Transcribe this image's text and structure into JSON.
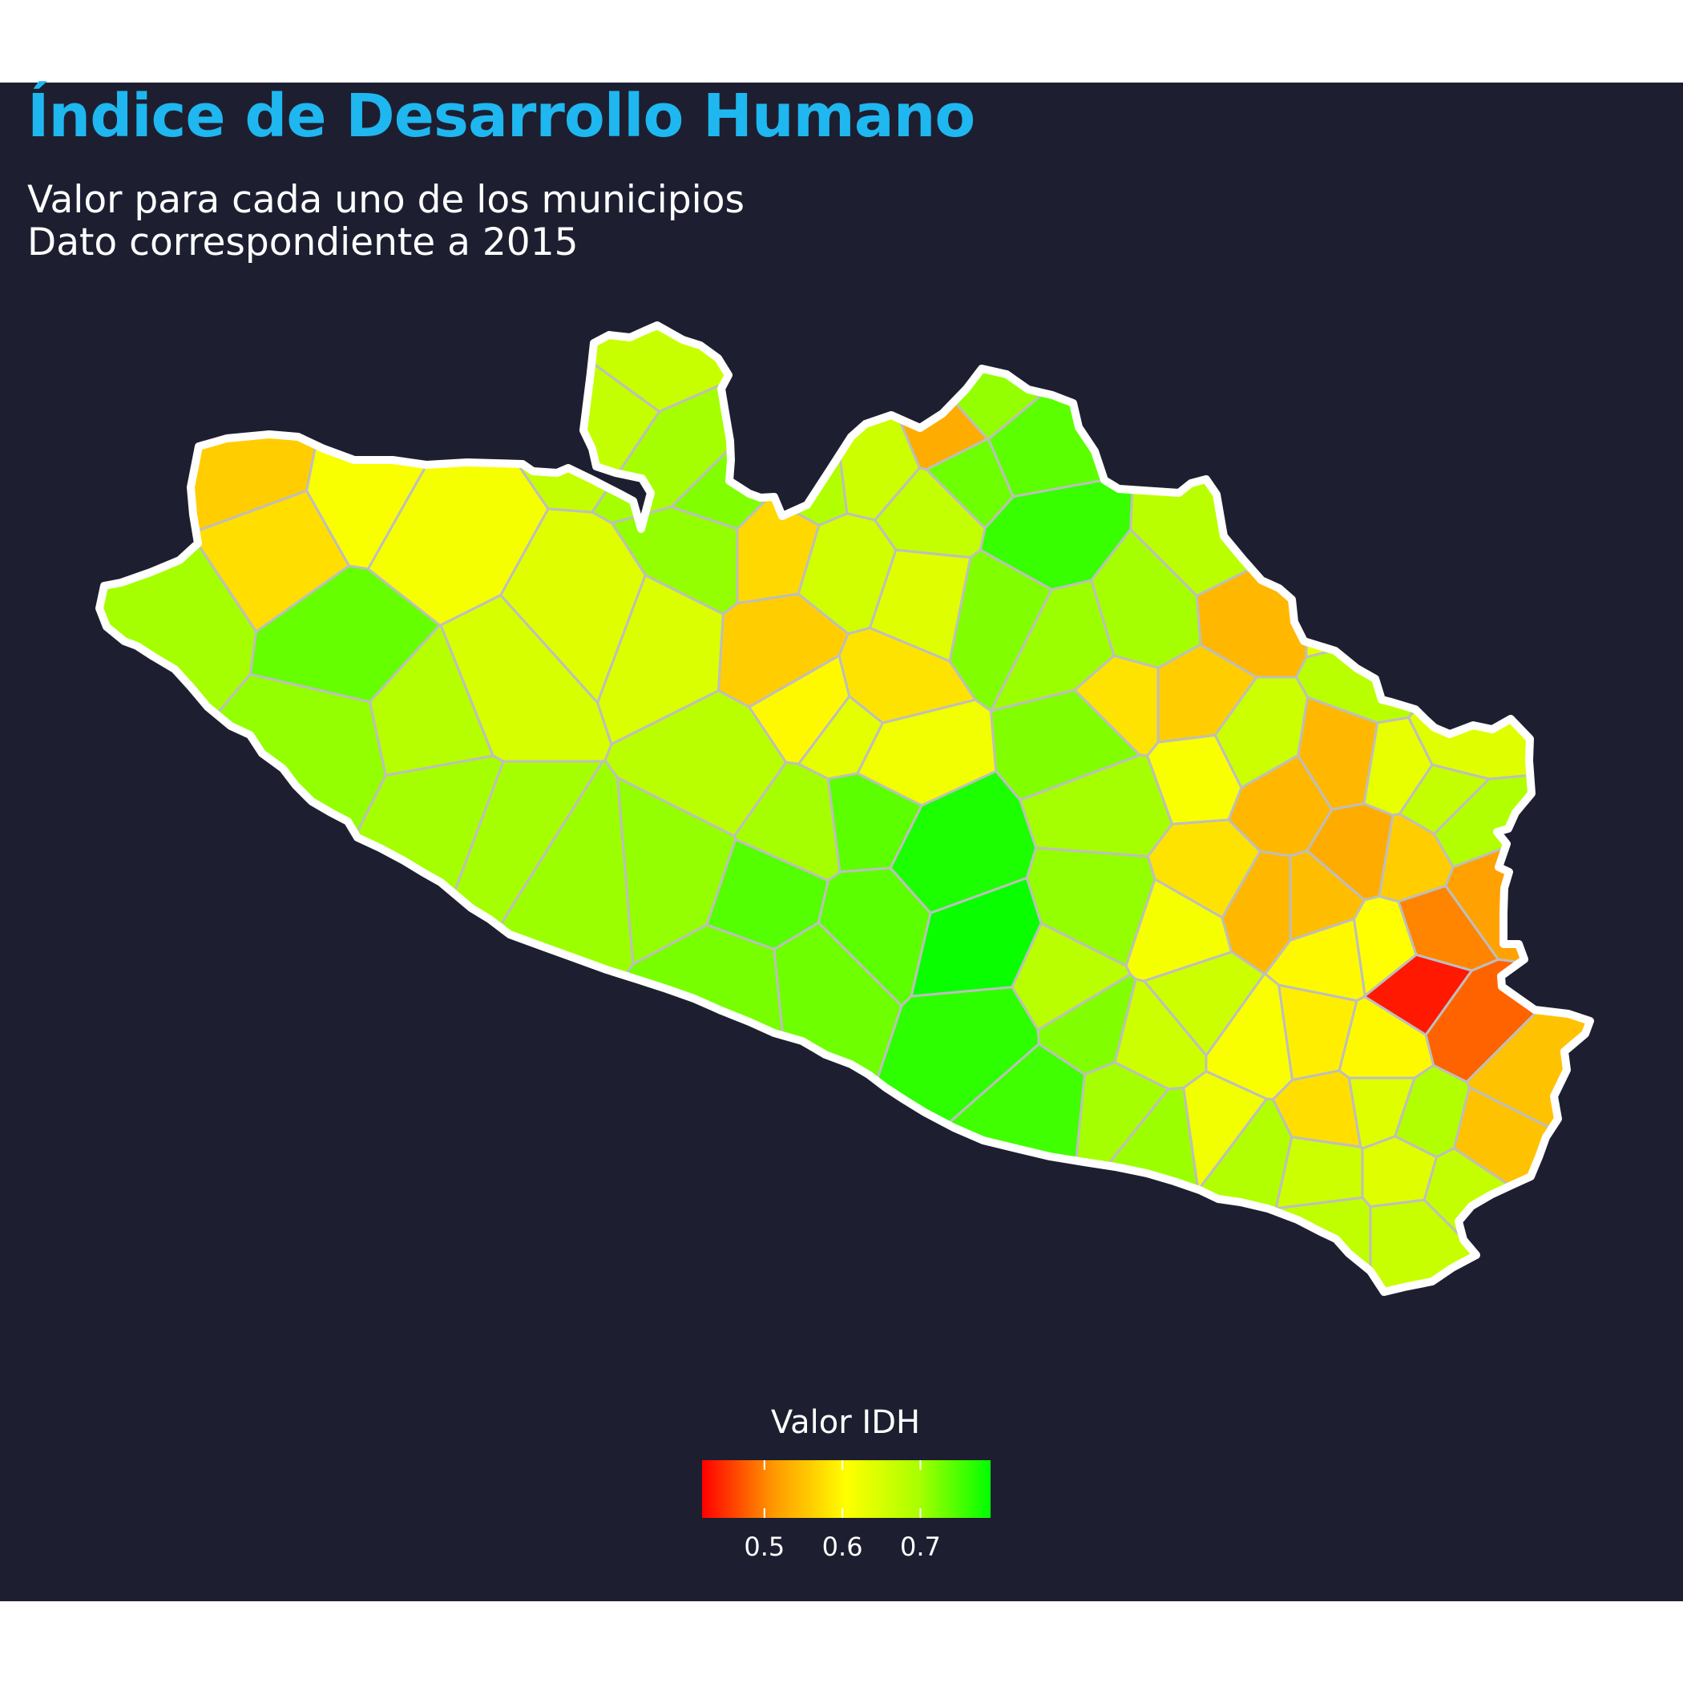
{
  "title": "Índice de Desarrollo Humano",
  "subtitle_line1": "Valor para cada uno de los municipios",
  "subtitle_line2": "Dato correspondiente a 2015",
  "legend": {
    "title": "Valor IDH",
    "min": 0.42,
    "max": 0.79,
    "ticks": [
      {
        "value": 0.5,
        "label": "0.5"
      },
      {
        "value": 0.6,
        "label": "0.6"
      },
      {
        "value": 0.7,
        "label": "0.7"
      }
    ],
    "colors": [
      "#ff0000",
      "#ff9900",
      "#ffff00",
      "#aaff00",
      "#00ff00"
    ]
  },
  "colors": {
    "background": "#1d1f31",
    "page": "#ffffff",
    "title": "#1fb7f0",
    "text": "#ffffff",
    "state_outline": "#ffffff",
    "municipal_border": "#bebebe"
  }
}
